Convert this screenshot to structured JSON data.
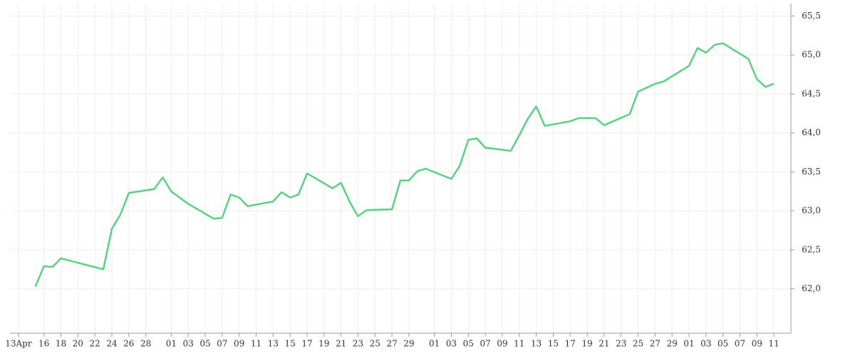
{
  "chart_data": {
    "type": "line",
    "color": "#5ad17f",
    "grid": true,
    "y_axis_side": "right",
    "x": [
      "04-15",
      "04-16",
      "04-17",
      "04-18",
      "04-23",
      "04-24",
      "04-25",
      "04-26",
      "04-29",
      "04-30",
      "05-01",
      "05-03",
      "05-06",
      "05-07",
      "05-08",
      "05-09",
      "05-10",
      "05-13",
      "05-14",
      "05-15",
      "05-16",
      "05-17",
      "05-20",
      "05-21",
      "05-22",
      "05-23",
      "05-24",
      "05-27",
      "05-28",
      "05-29",
      "05-30",
      "05-31",
      "06-03",
      "06-04",
      "06-05",
      "06-06",
      "06-07",
      "06-10",
      "06-11",
      "06-12",
      "06-13",
      "06-14",
      "06-17",
      "06-18",
      "06-20",
      "06-21",
      "06-24",
      "06-25",
      "06-26",
      "06-27",
      "06-28",
      "07-01",
      "07-02",
      "07-03",
      "07-04",
      "07-05",
      "07-08",
      "07-09",
      "07-10",
      "07-11"
    ],
    "values": [
      62.03,
      62.29,
      62.28,
      62.39,
      62.25,
      62.77,
      62.95,
      63.23,
      63.28,
      63.43,
      63.25,
      63.09,
      62.9,
      62.91,
      63.21,
      63.17,
      63.06,
      63.12,
      63.24,
      63.17,
      63.21,
      63.48,
      63.29,
      63.36,
      63.12,
      62.93,
      63.01,
      63.02,
      63.39,
      63.39,
      63.51,
      63.54,
      63.41,
      63.58,
      63.91,
      63.93,
      63.81,
      63.77,
      63.97,
      64.18,
      64.34,
      64.09,
      64.15,
      64.19,
      64.19,
      64.1,
      64.24,
      64.53,
      64.58,
      64.63,
      64.66,
      64.86,
      65.09,
      65.03,
      65.13,
      65.15,
      64.95,
      64.69,
      64.59,
      64.63
    ],
    "xlim": [
      "04-12",
      "07-13"
    ],
    "xticks": [
      {
        "value": "04-13",
        "label": "13Apr"
      },
      {
        "value": "04-16",
        "label": "16"
      },
      {
        "value": "04-18",
        "label": "18"
      },
      {
        "value": "04-20",
        "label": "20"
      },
      {
        "value": "04-22",
        "label": "22"
      },
      {
        "value": "04-24",
        "label": "24"
      },
      {
        "value": "04-26",
        "label": "26"
      },
      {
        "value": "04-28",
        "label": "28"
      },
      {
        "value": "05-01",
        "label": "01"
      },
      {
        "value": "05-03",
        "label": "03"
      },
      {
        "value": "05-05",
        "label": "05"
      },
      {
        "value": "05-07",
        "label": "07"
      },
      {
        "value": "05-09",
        "label": "09"
      },
      {
        "value": "05-11",
        "label": "11"
      },
      {
        "value": "05-13",
        "label": "13"
      },
      {
        "value": "05-15",
        "label": "15"
      },
      {
        "value": "05-17",
        "label": "17"
      },
      {
        "value": "05-19",
        "label": "19"
      },
      {
        "value": "05-21",
        "label": "21"
      },
      {
        "value": "05-23",
        "label": "23"
      },
      {
        "value": "05-25",
        "label": "25"
      },
      {
        "value": "05-27",
        "label": "27"
      },
      {
        "value": "05-29",
        "label": "29"
      },
      {
        "value": "06-01",
        "label": "01"
      },
      {
        "value": "06-03",
        "label": "03"
      },
      {
        "value": "06-05",
        "label": "05"
      },
      {
        "value": "06-07",
        "label": "07"
      },
      {
        "value": "06-09",
        "label": "09"
      },
      {
        "value": "06-11",
        "label": "11"
      },
      {
        "value": "06-13",
        "label": "13"
      },
      {
        "value": "06-15",
        "label": "15"
      },
      {
        "value": "06-17",
        "label": "17"
      },
      {
        "value": "06-19",
        "label": "19"
      },
      {
        "value": "06-21",
        "label": "21"
      },
      {
        "value": "06-23",
        "label": "23"
      },
      {
        "value": "06-25",
        "label": "25"
      },
      {
        "value": "06-27",
        "label": "27"
      },
      {
        "value": "06-29",
        "label": "29"
      },
      {
        "value": "07-01",
        "label": "01"
      },
      {
        "value": "07-03",
        "label": "03"
      },
      {
        "value": "07-05",
        "label": "05"
      },
      {
        "value": "07-07",
        "label": "07"
      },
      {
        "value": "07-09",
        "label": "09"
      },
      {
        "value": "07-11",
        "label": "11"
      }
    ],
    "ylim": [
      61.43,
      65.66
    ],
    "yticks": [
      {
        "value": 62.0,
        "label": "62,0"
      },
      {
        "value": 62.5,
        "label": "62,5"
      },
      {
        "value": 63.0,
        "label": "63,0"
      },
      {
        "value": 63.5,
        "label": "63,5"
      },
      {
        "value": 64.0,
        "label": "64,0"
      },
      {
        "value": 64.5,
        "label": "64,5"
      },
      {
        "value": 65.0,
        "label": "65,0"
      },
      {
        "value": 65.5,
        "label": "65,5"
      }
    ]
  }
}
